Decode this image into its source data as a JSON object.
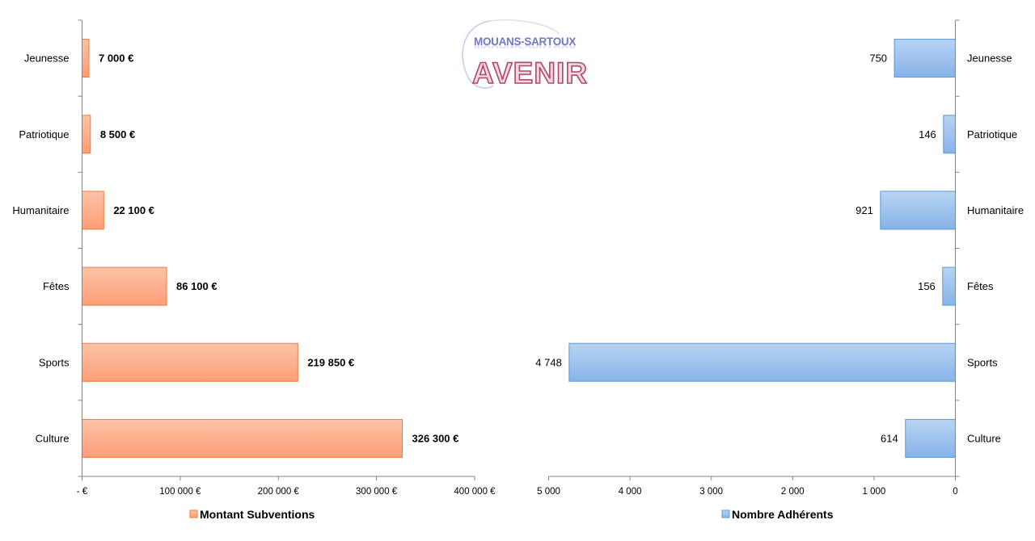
{
  "logo": {
    "top_text": "MOUANS-SARTOUX",
    "main_text": "AVENIR"
  },
  "chart_data": [
    {
      "type": "bar",
      "orientation": "horizontal",
      "categories": [
        "Jeunesse",
        "Patriotique",
        "Humanitaire",
        "Fêtes",
        "Sports",
        "Culture"
      ],
      "series": [
        {
          "name": "Montant Subventions",
          "values": [
            7000,
            8500,
            22100,
            86100,
            219850,
            326300
          ]
        }
      ],
      "data_labels": [
        "7 000 €",
        "8 500 €",
        "22 100 €",
        "86 100 €",
        "219 850 €",
        "326 300 €"
      ],
      "xlim": [
        0,
        400000
      ],
      "x_ticks": [
        0,
        100000,
        200000,
        300000,
        400000
      ],
      "x_tick_labels": [
        "-   €",
        "100 000 €",
        "200 000 €",
        "300 000 €",
        "400 000 €"
      ],
      "legend_position": "bottom",
      "color": "#fdab86",
      "edge_color": "#ee7a3e"
    },
    {
      "type": "bar",
      "orientation": "horizontal",
      "x_reversed": true,
      "categories": [
        "Jeunesse",
        "Patriotique",
        "Humanitaire",
        "Fêtes",
        "Sports",
        "Culture"
      ],
      "series": [
        {
          "name": "Nombre Adhérents",
          "values": [
            750,
            146,
            921,
            156,
            4748,
            614
          ]
        }
      ],
      "data_labels": [
        "750",
        "146",
        "921",
        "156",
        "4 748",
        "614"
      ],
      "xlim": [
        0,
        5000
      ],
      "x_ticks": [
        5000,
        4000,
        3000,
        2000,
        1000,
        0
      ],
      "x_tick_labels": [
        "5 000",
        "4 000",
        "3 000",
        "2 000",
        "1 000",
        "0"
      ],
      "legend_position": "bottom",
      "color": "#9dc3ee",
      "edge_color": "#5b9bd5"
    }
  ]
}
